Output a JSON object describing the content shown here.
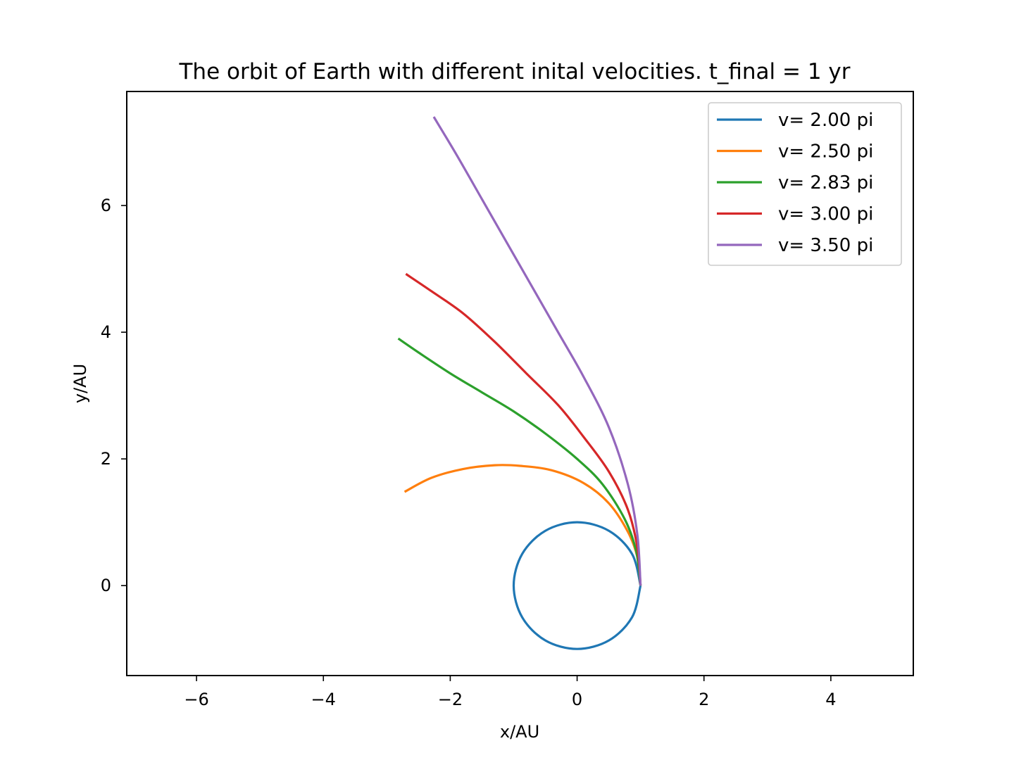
{
  "chart_data": {
    "type": "line",
    "title": "The orbit of Earth with different inital velocities. t_final = 1 yr",
    "xlabel": "x/AU",
    "ylabel": "y/AU",
    "xlim": [
      -7.1,
      5.3
    ],
    "ylim": [
      -1.42,
      7.8
    ],
    "x_ticks": [
      -6,
      -4,
      -2,
      0,
      2,
      4
    ],
    "x_tick_labels": [
      "−6",
      "−4",
      "−2",
      "0",
      "2",
      "4"
    ],
    "y_ticks": [
      0,
      2,
      4,
      6
    ],
    "y_tick_labels": [
      "0",
      "2",
      "4",
      "6"
    ],
    "grid": false,
    "legend_position": "top-right",
    "series": [
      {
        "name": "v= 2.00 pi",
        "color": "#1f77b4",
        "x": [
          1.0,
          0.866,
          0.5,
          0.0,
          -0.5,
          -0.866,
          -1.0,
          -0.866,
          -0.5,
          0.0,
          0.5,
          0.866,
          1.0
        ],
        "y": [
          0.0,
          0.5,
          0.866,
          1.0,
          0.866,
          0.5,
          0.0,
          -0.5,
          -0.866,
          -1.0,
          -0.866,
          -0.5,
          0.0
        ]
      },
      {
        "name": "v= 2.50 pi",
        "color": "#ff7f0e",
        "x": [
          1.0,
          0.95,
          0.8,
          0.5,
          0.1,
          -0.4,
          -0.9,
          -1.3,
          -1.8,
          -2.3,
          -2.72
        ],
        "y": [
          0.0,
          0.45,
          0.85,
          1.3,
          1.62,
          1.82,
          1.89,
          1.9,
          1.84,
          1.7,
          1.48
        ]
      },
      {
        "name": "v= 2.83 pi",
        "color": "#2ca02c",
        "x": [
          1.0,
          0.93,
          0.75,
          0.4,
          0.0,
          -0.5,
          -1.0,
          -1.5,
          -2.0,
          -2.5,
          -2.82
        ],
        "y": [
          0.0,
          0.55,
          1.05,
          1.6,
          2.0,
          2.4,
          2.75,
          3.05,
          3.35,
          3.68,
          3.9
        ]
      },
      {
        "name": "v= 3.00 pi",
        "color": "#d62728",
        "x": [
          1.0,
          0.95,
          0.8,
          0.5,
          0.1,
          -0.3,
          -0.8,
          -1.3,
          -1.8,
          -2.3,
          -2.7
        ],
        "y": [
          0.0,
          0.6,
          1.2,
          1.8,
          2.35,
          2.85,
          3.35,
          3.85,
          4.3,
          4.65,
          4.92
        ]
      },
      {
        "name": "v= 3.50 pi",
        "color": "#9467bd",
        "x": [
          1.0,
          0.95,
          0.8,
          0.5,
          0.1,
          -0.3,
          -0.7,
          -1.1,
          -1.5,
          -1.9,
          -2.26
        ],
        "y": [
          0.0,
          0.8,
          1.6,
          2.5,
          3.3,
          4.0,
          4.7,
          5.4,
          6.1,
          6.8,
          7.4
        ]
      }
    ]
  }
}
